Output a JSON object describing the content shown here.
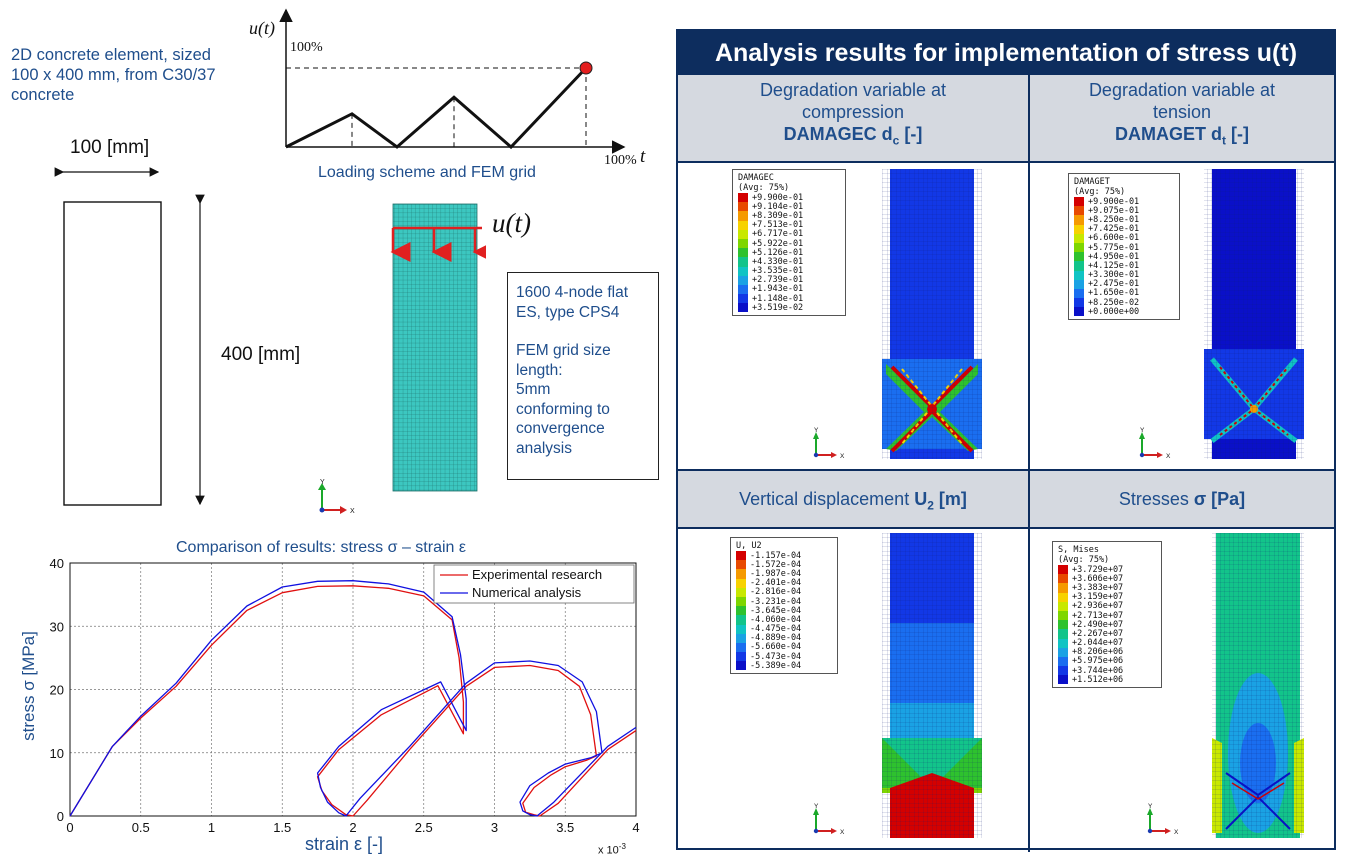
{
  "left": {
    "element_desc": [
      "2D concrete element, sized",
      "100 x 400 mm, from C30/37",
      "concrete"
    ],
    "width_label": "100 [mm]",
    "height_label": "400 [mm]",
    "loading_caption": "Loading scheme and FEM grid",
    "u_t_label": "u(t)",
    "percent_100_y": "100%",
    "percent_100_x": "100%",
    "t_label": "t",
    "mesh_note": [
      "1600 4-node flat",
      "ES, type CPS4",
      "",
      "FEM grid size",
      "length:",
      "5mm",
      "conforming to",
      "convergence",
      "analysis"
    ],
    "axis_y": "Y",
    "axis_x": "X"
  },
  "chart_data": {
    "type": "line",
    "title": "Comparison of results: stress σ – strain ε",
    "xlabel": "strain ε [-]",
    "ylabel": "stress σ [MPa]",
    "x_multiplier": "x 10",
    "x_multiplier_exp": "-3",
    "xlim": [
      0,
      4
    ],
    "ylim": [
      0,
      40
    ],
    "xticks": [
      "0",
      "0.5",
      "1",
      "1.5",
      "2",
      "2.5",
      "3",
      "3.5",
      "4"
    ],
    "yticks": [
      "0",
      "10",
      "20",
      "30",
      "40"
    ],
    "grid": true,
    "legend_position": "top-right",
    "series": [
      {
        "name": "Experimental research",
        "color": "#e01010",
        "x": [
          0,
          0.3,
          0.5,
          0.75,
          1.0,
          1.25,
          1.5,
          1.75,
          2.0,
          2.25,
          2.5,
          2.7,
          2.75,
          2.78,
          2.78,
          2.6,
          2.2,
          1.9,
          1.75,
          1.78,
          1.85,
          1.95,
          2.0,
          2.1,
          2.4,
          2.8,
          3.0,
          3.25,
          3.45,
          3.6,
          3.68,
          3.72,
          3.65,
          3.5,
          3.4,
          3.28,
          3.2,
          3.22,
          3.28,
          3.32,
          3.45,
          3.8,
          4.0
        ],
        "y": [
          0,
          11,
          15.5,
          20.5,
          27,
          32.5,
          35.3,
          36.3,
          36.4,
          36.0,
          34.8,
          31,
          25,
          18,
          13,
          20.6,
          16,
          10.5,
          6.2,
          4.0,
          1.8,
          0.2,
          0,
          2.5,
          10.5,
          20.5,
          23.5,
          23.8,
          23.0,
          20.5,
          16,
          9.5,
          8.8,
          7.8,
          6.5,
          4.5,
          2.0,
          0.6,
          0.2,
          0,
          2.0,
          10.5,
          13.5
        ]
      },
      {
        "name": "Numerical analysis",
        "color": "#1010e0",
        "x": [
          0,
          0.3,
          0.5,
          0.75,
          1.0,
          1.25,
          1.5,
          1.75,
          2.0,
          2.25,
          2.5,
          2.7,
          2.76,
          2.8,
          2.8,
          2.62,
          2.2,
          1.9,
          1.75,
          1.77,
          1.82,
          1.9,
          1.95,
          2.05,
          2.4,
          2.8,
          3.0,
          3.25,
          3.45,
          3.62,
          3.72,
          3.76,
          3.68,
          3.5,
          3.38,
          3.25,
          3.18,
          3.2,
          3.25,
          3.3,
          3.42,
          3.8,
          4.0
        ],
        "y": [
          0,
          11,
          15.8,
          21,
          27.8,
          33.2,
          36.2,
          37.1,
          37.2,
          36.7,
          35.4,
          31.5,
          25.5,
          18.5,
          13.5,
          21.2,
          16.8,
          11,
          6.8,
          4.5,
          2.2,
          0.5,
          0,
          2.8,
          11,
          21,
          24.2,
          24.5,
          23.8,
          21.2,
          16.5,
          10,
          9.2,
          8.2,
          6.8,
          4.8,
          2.2,
          0.8,
          0.2,
          0,
          2.2,
          11,
          14
        ]
      }
    ]
  },
  "loading_chart": {
    "x": [
      0,
      0.22,
      0.37,
      0.56,
      0.75,
      1.0
    ],
    "y": [
      0,
      0.42,
      0,
      0.63,
      0,
      1.0
    ]
  },
  "results": {
    "title": "Analysis results for implementation of stress u(t)",
    "cells": {
      "damagec": {
        "head_lines": [
          "Degradation variable at",
          "compression"
        ],
        "head_bold": "DAMAGEC d",
        "head_bold_sub": "c",
        "head_bold_tail": " [-]",
        "legend_title": "DAMAGEC",
        "legend_avg": "(Avg: 75%)",
        "legend_values": [
          "+9.900e-01",
          "+9.104e-01",
          "+8.309e-01",
          "+7.513e-01",
          "+6.717e-01",
          "+5.922e-01",
          "+5.126e-01",
          "+4.330e-01",
          "+3.535e-01",
          "+2.739e-01",
          "+1.943e-01",
          "+1.148e-01",
          "+3.519e-02"
        ]
      },
      "damaget": {
        "head_lines": [
          "Degradation variable at",
          "tension"
        ],
        "head_bold": "DAMAGET d",
        "head_bold_sub": "t",
        "head_bold_tail": " [-]",
        "legend_title": "DAMAGET",
        "legend_avg": "(Avg: 75%)",
        "legend_values": [
          "+9.900e-01",
          "+9.075e-01",
          "+8.250e-01",
          "+7.425e-01",
          "+6.600e-01",
          "+5.775e-01",
          "+4.950e-01",
          "+4.125e-01",
          "+3.300e-01",
          "+2.475e-01",
          "+1.650e-01",
          "+8.250e-02",
          "+0.000e+00"
        ]
      },
      "u2": {
        "head_plain": "Vertical displacement ",
        "head_bold": "U",
        "head_bold_sub": "2",
        "head_bold_tail": " [m]",
        "legend_title": "U, U2",
        "legend_values": [
          "-1.157e-04",
          "-1.572e-04",
          "-1.987e-04",
          "-2.401e-04",
          "-2.816e-04",
          "-3.231e-04",
          "-3.645e-04",
          "-4.060e-04",
          "-4.475e-04",
          "-4.889e-04",
          "-5.660e-04",
          "-5.473e-04",
          "-5.389e-04"
        ]
      },
      "stress": {
        "head_plain": "Stresses  ",
        "head_bold": "σ",
        "head_bold_tail": "  [Pa]",
        "legend_title": "S, Mises",
        "legend_avg": "(Avg: 75%)",
        "legend_values": [
          "+3.729e+07",
          "+3.606e+07",
          "+3.383e+07",
          "+3.159e+07",
          "+2.936e+07",
          "+2.713e+07",
          "+2.490e+07",
          "+2.267e+07",
          "+2.044e+07",
          "+8.206e+06",
          "+5.975e+06",
          "+3.744e+06",
          "+1.512e+06"
        ]
      }
    },
    "colormap": [
      "#d40000",
      "#e84a00",
      "#f59a00",
      "#f7d200",
      "#c8e800",
      "#7ed600",
      "#2ec22e",
      "#12c48a",
      "#10c4c4",
      "#1aa2e4",
      "#1a6ef0",
      "#1238e6",
      "#0a10c8"
    ]
  }
}
